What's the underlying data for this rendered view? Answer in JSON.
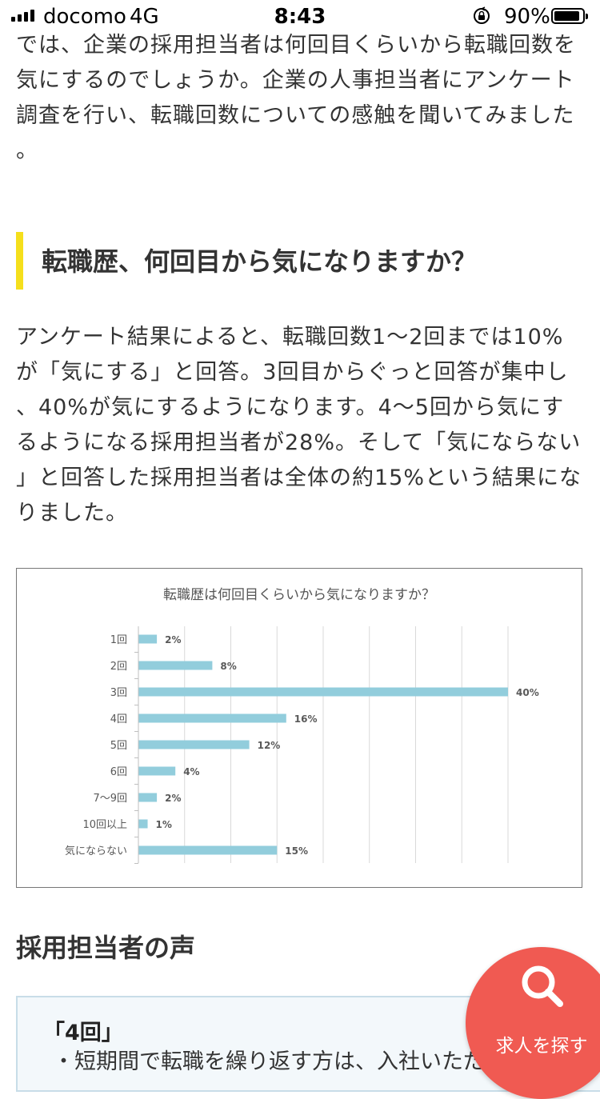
{
  "status_bar": {
    "carrier": "docomo",
    "network": "4G",
    "time": "8:43",
    "battery": "90%",
    "battery_level": 0.9
  },
  "intro": {
    "lines": [
      "では、企業の採用担当者は何回目くらいから転職回数を",
      "気にするのでしょうか。企業の人事担当者にアンケート",
      "調査を行い、転職回数についての感触を聞いてみました",
      "。"
    ]
  },
  "section_heading": {
    "text": "転職歴、何回目から気になりますか？",
    "accent_color": "#f5df1c"
  },
  "result": {
    "lines": [
      "アンケート結果によると、転職回数1〜2回までは10%",
      "が「気にする」と回答。3回目からぐっと回答が集中し",
      "、40%が気にするようになります。4〜5回から気にす",
      "るようになる採用担当者が28%。そして「気にならない",
      "」と回答した採用担当者は全体の約15%という結果にな",
      "りました。"
    ]
  },
  "chart_data": {
    "type": "bar",
    "orientation": "horizontal",
    "title": "転職歴は何回目くらいから気になりますか？",
    "categories": [
      "1回",
      "2回",
      "3回",
      "4回",
      "5回",
      "6回",
      "7〜9回",
      "10回以上",
      "気にならない"
    ],
    "values": [
      2,
      8,
      40,
      16,
      12,
      4,
      2,
      1,
      15
    ],
    "value_labels": [
      "2%",
      "8%",
      "40%",
      "16%",
      "12%",
      "4%",
      "2%",
      "1%",
      "15%"
    ],
    "xlim": [
      0,
      40
    ],
    "grid": true,
    "bar_color": "#92cddc"
  },
  "voices": {
    "heading": "採用担当者の声",
    "card_title": "「4回」",
    "card_text": "・短期間で転職を繰り返す方は、入社いただ"
  },
  "fab": {
    "label": "求人を探す",
    "icon": "search-icon",
    "color": "#f05a52"
  }
}
